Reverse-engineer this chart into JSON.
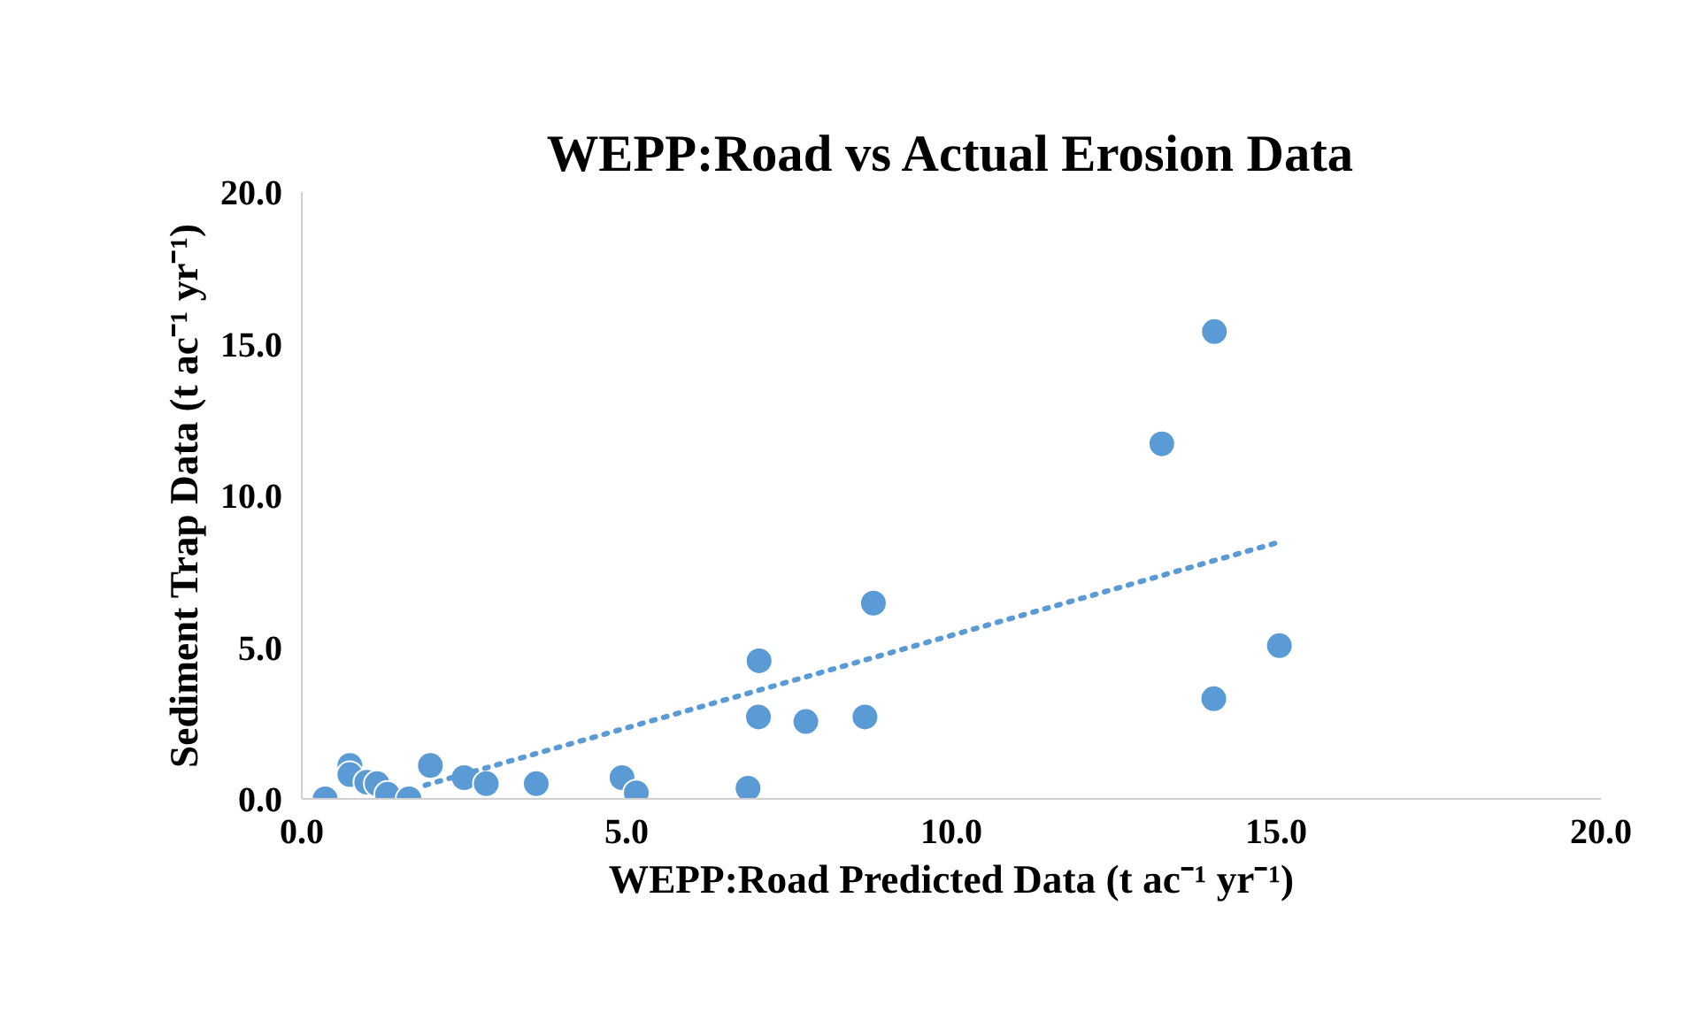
{
  "chart_data": {
    "type": "scatter",
    "title": "WEPP:Road vs Actual Erosion Data",
    "xlabel": "WEPP:Road Predicted Data (t ac⁻¹ yr⁻¹)",
    "ylabel": "Sediment Trap Data (t ac⁻¹ yr⁻¹)",
    "xlim": [
      0,
      20
    ],
    "ylim": [
      0,
      20
    ],
    "xticks": [
      {
        "value": 0,
        "label": "0.0"
      },
      {
        "value": 5,
        "label": "5.0"
      },
      {
        "value": 10,
        "label": "10.0"
      },
      {
        "value": 15,
        "label": "15.0"
      },
      {
        "value": 20,
        "label": "20.0"
      }
    ],
    "yticks": [
      {
        "value": 0,
        "label": "0.0"
      },
      {
        "value": 5,
        "label": "5.0"
      },
      {
        "value": 10,
        "label": "10.0"
      },
      {
        "value": 15,
        "label": "15.0"
      },
      {
        "value": 20,
        "label": "20.0"
      }
    ],
    "grid": false,
    "series": [
      {
        "color": "#5b9bd5",
        "marker": "circle",
        "x": [
          0.36,
          0.74,
          0.74,
          1.0,
          1.16,
          1.32,
          1.65,
          1.98,
          2.5,
          2.84,
          3.61,
          4.93,
          5.15,
          6.87,
          7.03,
          7.76,
          8.67,
          7.04,
          8.8,
          14.04,
          15.05,
          14.05,
          13.24
        ],
        "values": [
          0,
          1.1,
          0.8,
          0.55,
          0.5,
          0.15,
          0,
          1.1,
          0.7,
          0.5,
          0.5,
          0.7,
          0.2,
          0.35,
          2.7,
          2.55,
          2.7,
          4.55,
          6.45,
          3.3,
          5.05,
          15.4,
          11.7
        ]
      },
      {
        "type": "line",
        "color": "#5b9bd5",
        "line_style": "dotted",
        "marker": "none",
        "x": [
          1.9,
          15.06
        ],
        "values": [
          0.45,
          8.47
        ]
      }
    ]
  }
}
